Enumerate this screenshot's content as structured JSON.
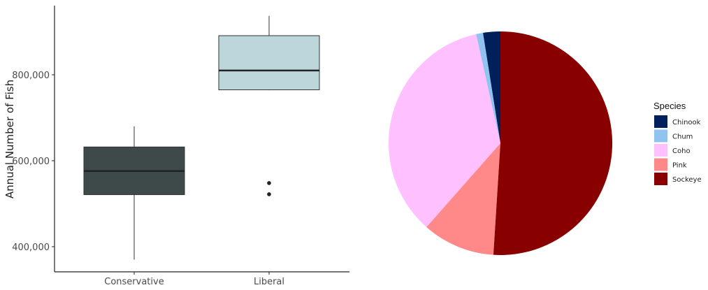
{
  "chart_data": [
    {
      "type": "box",
      "title": "",
      "xlabel": "",
      "ylabel": "Annual Number of Fish",
      "ylim": [
        360000,
        955000
      ],
      "yticks": [
        400000,
        600000,
        800000
      ],
      "ytick_labels": [
        "400,000",
        "600,000",
        "800,000"
      ],
      "grid": false,
      "categories": [
        "Conservative",
        "Liberal"
      ],
      "boxes": [
        {
          "category": "Conservative",
          "whisker_low": 370000,
          "q1": 521000,
          "median": 576000,
          "q3": 632000,
          "whisker_high": 680000,
          "outliers": [],
          "fill": "#3E4A4A"
        },
        {
          "category": "Liberal",
          "whisker_low": 764000,
          "q1": 765000,
          "median": 810000,
          "q3": 891000,
          "whisker_high": 937000,
          "outliers": [
            548000,
            522000
          ],
          "fill": "#BDD6DC"
        }
      ]
    },
    {
      "type": "pie",
      "title": "",
      "legend_title": "Species",
      "legend_position": "right",
      "slices": [
        {
          "label": "Chinook",
          "value": 2.5,
          "color": "#00205B"
        },
        {
          "label": "Chum",
          "value": 1.0,
          "color": "#90C3F0"
        },
        {
          "label": "Coho",
          "value": 35.0,
          "color": "#FFC0FF"
        },
        {
          "label": "Pink",
          "value": 10.5,
          "color": "#FF8888"
        },
        {
          "label": "Sockeye",
          "value": 51.0,
          "color": "#880000"
        }
      ]
    }
  ]
}
